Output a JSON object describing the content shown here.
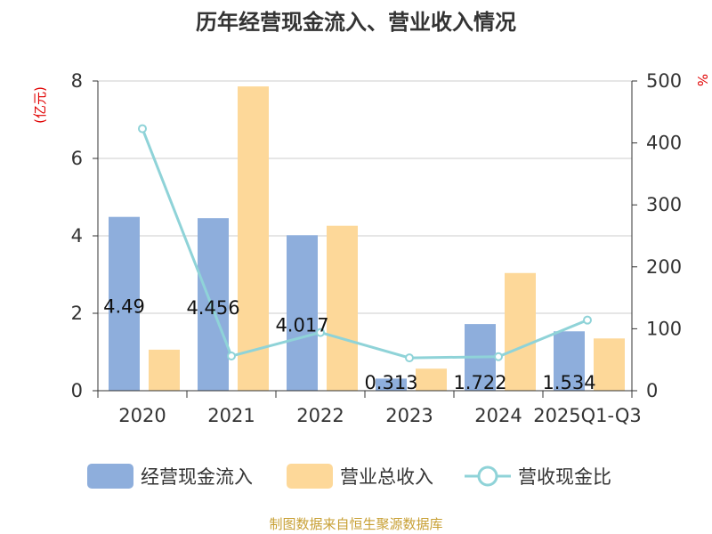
{
  "chart_data": {
    "type": "bar",
    "title": "历年经营现金流入、营业收入情况",
    "categories": [
      "2020",
      "2021",
      "2022",
      "2023",
      "2024",
      "2025Q1-Q3"
    ],
    "y_left_unit": "(亿元)",
    "y_right_unit": "%",
    "y_left_range": [
      0,
      8
    ],
    "y_right_range": [
      0,
      500
    ],
    "y_left_ticks": [
      "0",
      "2",
      "4",
      "6",
      "8"
    ],
    "y_right_ticks": [
      "0",
      "100",
      "200",
      "300",
      "400",
      "500"
    ],
    "grid": true,
    "legend_position": "bottom",
    "series": [
      {
        "name": "经营现金流入",
        "type": "bar",
        "axis": "left",
        "color": "#8eaedc",
        "values": [
          4.49,
          4.456,
          4.017,
          0.313,
          1.722,
          1.534
        ],
        "labels": [
          "4.49",
          "4.456",
          "4.017",
          "0.313",
          "1.722",
          "1.534"
        ]
      },
      {
        "name": "营业总收入",
        "type": "bar",
        "axis": "left",
        "color": "#fdd899",
        "values": [
          1.06,
          7.86,
          4.26,
          0.57,
          3.04,
          1.35
        ]
      },
      {
        "name": "营收现金比",
        "type": "line",
        "axis": "right",
        "color": "#8fd3d8",
        "values": [
          423,
          56,
          94,
          53,
          55,
          114
        ]
      }
    ]
  },
  "source": "制图数据来自恒生聚源数据库"
}
